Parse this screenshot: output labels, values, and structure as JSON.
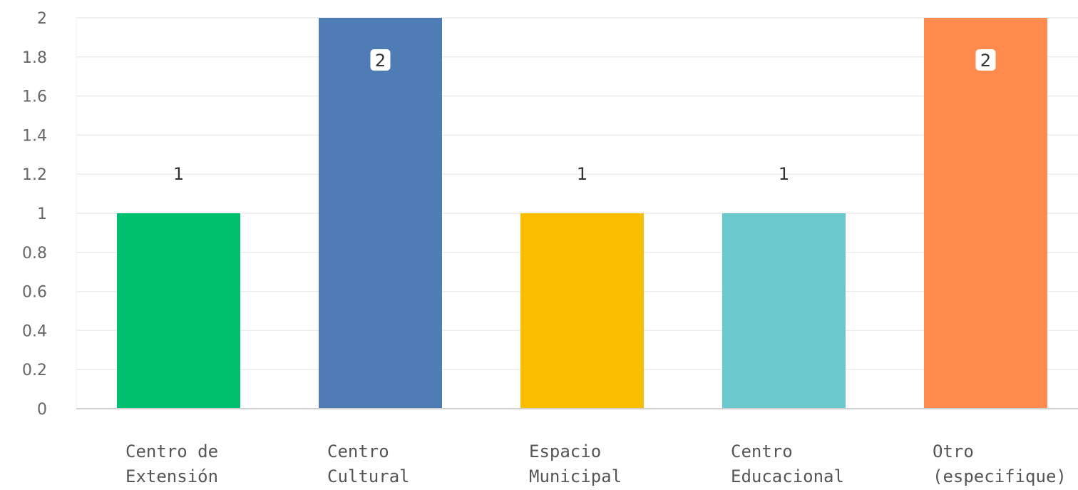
{
  "chart_data": {
    "type": "bar",
    "categories": [
      [
        "Centro de",
        "Extensión"
      ],
      [
        "Centro",
        "Cultural"
      ],
      [
        "Espacio",
        "Municipal"
      ],
      [
        "Centro",
        "Educacional"
      ],
      [
        "Otro",
        "(especifique)"
      ]
    ],
    "values": [
      1,
      2,
      1,
      1,
      2
    ],
    "colors": [
      "#00bf6f",
      "#507cb6",
      "#f9be00",
      "#6bc8cd",
      "#ff8b4f"
    ],
    "data_labels": [
      "1",
      "2",
      "1",
      "1",
      "2"
    ],
    "title": "",
    "xlabel": "",
    "ylabel": "",
    "ylim": [
      0,
      2
    ],
    "yticks": [
      "0",
      "0.2",
      "0.4",
      "0.6",
      "0.8",
      "1",
      "1.2",
      "1.4",
      "1.6",
      "1.8",
      "2"
    ],
    "grid": true
  }
}
